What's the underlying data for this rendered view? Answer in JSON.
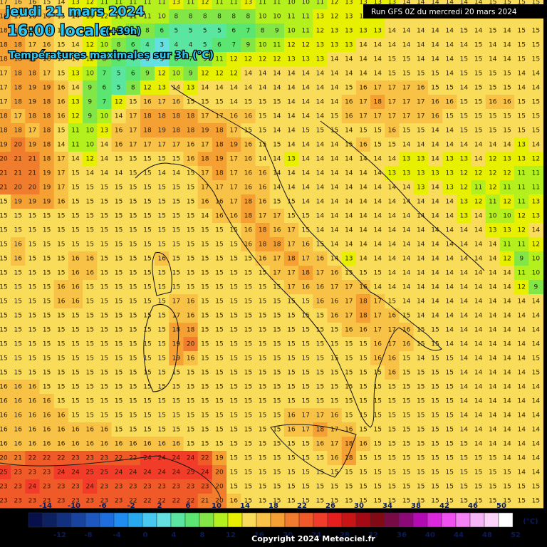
{
  "header": {
    "title": "jeudi 21 mars 2024",
    "time": "16:00 locale",
    "lead": "(+39h)",
    "subtitle": "Températures maximales sur 3h (°C)",
    "run": "Run GFS 0Z du mercredi 20 mars 2024"
  },
  "grid": {
    "rows": [
      [
        17,
        16,
        16,
        15,
        14,
        13,
        12,
        11,
        11,
        11,
        11,
        11,
        13,
        11,
        12,
        11,
        11,
        13,
        11,
        11,
        10,
        10,
        11,
        12,
        13,
        13,
        13,
        13,
        14,
        14,
        14,
        14,
        14,
        14,
        15,
        15,
        15,
        15
      ],
      [
        18,
        17,
        16,
        16,
        15,
        14,
        13,
        12,
        11,
        11,
        11,
        10,
        8,
        8,
        8,
        8,
        8,
        8,
        10,
        10,
        11,
        11,
        13,
        12,
        13,
        13,
        13,
        14,
        14,
        14,
        14,
        14,
        14,
        15,
        14,
        14,
        15,
        15
      ],
      [
        18,
        18,
        16,
        16,
        15,
        14,
        13,
        12,
        10,
        9,
        8,
        6,
        5,
        5,
        5,
        5,
        6,
        7,
        8,
        9,
        10,
        11,
        12,
        13,
        13,
        13,
        13,
        14,
        14,
        14,
        14,
        14,
        15,
        14,
        15,
        14,
        15,
        15
      ],
      [
        18,
        18,
        17,
        16,
        15,
        14,
        12,
        10,
        8,
        6,
        4,
        3,
        4,
        4,
        5,
        6,
        7,
        9,
        10,
        11,
        12,
        12,
        13,
        13,
        13,
        14,
        14,
        14,
        14,
        14,
        14,
        14,
        14,
        15,
        14,
        14,
        15,
        15
      ],
      [
        18,
        18,
        18,
        16,
        15,
        14,
        12,
        8,
        6,
        4,
        3,
        3,
        6,
        7,
        9,
        11,
        12,
        12,
        12,
        12,
        13,
        13,
        13,
        14,
        14,
        14,
        14,
        15,
        15,
        14,
        14,
        14,
        15,
        15,
        14,
        14,
        15,
        15
      ],
      [
        17,
        18,
        18,
        17,
        15,
        13,
        10,
        7,
        5,
        6,
        9,
        12,
        10,
        9,
        12,
        12,
        12,
        14,
        14,
        14,
        14,
        14,
        14,
        14,
        14,
        14,
        14,
        15,
        15,
        15,
        15,
        14,
        15,
        15,
        15,
        15,
        14,
        14
      ],
      [
        17,
        18,
        19,
        19,
        16,
        14,
        9,
        6,
        5,
        8,
        12,
        13,
        14,
        13,
        14,
        14,
        14,
        14,
        14,
        14,
        14,
        14,
        14,
        14,
        15,
        16,
        17,
        17,
        17,
        16,
        15,
        15,
        14,
        15,
        15,
        15,
        14,
        14
      ],
      [
        17,
        18,
        19,
        18,
        16,
        13,
        9,
        7,
        12,
        15,
        16,
        17,
        16,
        15,
        15,
        15,
        14,
        15,
        15,
        15,
        14,
        14,
        14,
        14,
        16,
        17,
        18,
        17,
        17,
        17,
        16,
        16,
        15,
        15,
        16,
        16,
        15,
        15
      ],
      [
        18,
        17,
        18,
        18,
        16,
        12,
        9,
        10,
        14,
        17,
        18,
        18,
        18,
        18,
        17,
        17,
        16,
        16,
        15,
        14,
        14,
        14,
        14,
        15,
        16,
        17,
        17,
        17,
        17,
        17,
        16,
        15,
        15,
        15,
        15,
        15,
        15,
        15
      ],
      [
        18,
        18,
        17,
        18,
        15,
        11,
        10,
        13,
        16,
        17,
        18,
        19,
        18,
        18,
        19,
        18,
        17,
        15,
        15,
        14,
        14,
        15,
        15,
        15,
        14,
        15,
        15,
        16,
        15,
        15,
        14,
        14,
        15,
        15,
        15,
        15,
        15,
        15
      ],
      [
        19,
        20,
        19,
        18,
        14,
        11,
        10,
        14,
        16,
        17,
        17,
        17,
        17,
        16,
        17,
        18,
        19,
        16,
        15,
        15,
        14,
        14,
        14,
        14,
        15,
        16,
        15,
        15,
        14,
        14,
        14,
        14,
        14,
        14,
        14,
        14,
        13,
        14
      ],
      [
        20,
        21,
        21,
        18,
        17,
        14,
        12,
        14,
        15,
        15,
        15,
        15,
        15,
        16,
        18,
        19,
        17,
        16,
        14,
        14,
        13,
        14,
        14,
        14,
        14,
        14,
        14,
        14,
        13,
        13,
        14,
        13,
        13,
        14,
        12,
        13,
        13,
        12
      ],
      [
        21,
        21,
        21,
        19,
        17,
        15,
        14,
        14,
        14,
        15,
        15,
        14,
        14,
        15,
        17,
        18,
        17,
        16,
        16,
        14,
        14,
        14,
        14,
        14,
        14,
        14,
        14,
        13,
        13,
        13,
        13,
        13,
        12,
        12,
        12,
        12,
        11,
        11
      ],
      [
        21,
        20,
        20,
        19,
        17,
        15,
        15,
        15,
        15,
        15,
        15,
        15,
        15,
        15,
        17,
        17,
        17,
        16,
        16,
        14,
        14,
        14,
        14,
        14,
        14,
        14,
        14,
        14,
        14,
        13,
        14,
        13,
        12,
        11,
        12,
        11,
        11,
        11
      ],
      [
        15,
        19,
        19,
        19,
        16,
        15,
        15,
        15,
        15,
        15,
        15,
        15,
        15,
        15,
        16,
        16,
        17,
        18,
        16,
        15,
        15,
        14,
        14,
        14,
        14,
        14,
        14,
        14,
        14,
        14,
        14,
        14,
        13,
        12,
        11,
        12,
        11,
        13
      ],
      [
        15,
        15,
        15,
        15,
        15,
        15,
        15,
        15,
        15,
        15,
        15,
        15,
        15,
        15,
        14,
        16,
        16,
        18,
        17,
        17,
        15,
        15,
        14,
        14,
        14,
        14,
        14,
        14,
        14,
        14,
        14,
        14,
        13,
        14,
        10,
        10,
        12,
        13
      ],
      [
        15,
        15,
        15,
        15,
        15,
        15,
        15,
        15,
        15,
        15,
        15,
        15,
        15,
        15,
        15,
        15,
        15,
        16,
        18,
        16,
        17,
        15,
        14,
        14,
        14,
        14,
        14,
        14,
        14,
        14,
        14,
        14,
        14,
        14,
        13,
        13,
        12,
        14
      ],
      [
        15,
        16,
        15,
        15,
        15,
        15,
        15,
        15,
        15,
        15,
        15,
        15,
        15,
        15,
        15,
        15,
        15,
        16,
        18,
        18,
        17,
        16,
        15,
        14,
        14,
        14,
        14,
        14,
        14,
        14,
        14,
        14,
        14,
        14,
        14,
        11,
        11,
        12
      ],
      [
        15,
        16,
        15,
        15,
        15,
        16,
        16,
        15,
        15,
        15,
        15,
        16,
        15,
        15,
        15,
        15,
        15,
        15,
        16,
        17,
        18,
        17,
        16,
        14,
        13,
        14,
        14,
        14,
        14,
        14,
        14,
        14,
        14,
        14,
        14,
        12,
        9,
        10
      ],
      [
        15,
        15,
        15,
        15,
        15,
        16,
        16,
        15,
        15,
        15,
        15,
        15,
        15,
        15,
        15,
        15,
        15,
        15,
        15,
        17,
        17,
        18,
        17,
        16,
        15,
        15,
        15,
        14,
        14,
        14,
        14,
        14,
        14,
        14,
        14,
        14,
        11,
        10
      ],
      [
        15,
        15,
        15,
        15,
        16,
        16,
        15,
        15,
        15,
        15,
        15,
        15,
        15,
        15,
        15,
        15,
        15,
        15,
        15,
        15,
        17,
        16,
        16,
        17,
        17,
        16,
        14,
        14,
        14,
        14,
        14,
        14,
        14,
        14,
        14,
        14,
        12,
        9
      ],
      [
        15,
        15,
        15,
        15,
        16,
        16,
        15,
        15,
        15,
        15,
        15,
        15,
        17,
        16,
        15,
        15,
        15,
        15,
        15,
        15,
        15,
        15,
        16,
        16,
        17,
        18,
        17,
        15,
        14,
        14,
        14,
        14,
        14,
        14,
        14,
        14,
        14,
        14
      ],
      [
        15,
        15,
        15,
        15,
        15,
        15,
        15,
        15,
        15,
        15,
        15,
        15,
        17,
        16,
        15,
        15,
        15,
        15,
        15,
        15,
        15,
        15,
        15,
        16,
        17,
        18,
        17,
        16,
        15,
        14,
        14,
        14,
        14,
        14,
        14,
        14,
        14,
        14
      ],
      [
        15,
        15,
        15,
        15,
        15,
        15,
        15,
        15,
        15,
        15,
        15,
        15,
        18,
        18,
        15,
        15,
        15,
        15,
        15,
        15,
        15,
        15,
        15,
        15,
        16,
        16,
        17,
        17,
        16,
        15,
        15,
        14,
        14,
        14,
        14,
        14,
        14,
        14
      ],
      [
        15,
        15,
        15,
        15,
        15,
        15,
        15,
        15,
        15,
        15,
        15,
        15,
        19,
        20,
        15,
        15,
        15,
        15,
        15,
        15,
        15,
        15,
        15,
        15,
        15,
        15,
        16,
        17,
        16,
        15,
        15,
        14,
        14,
        14,
        14,
        14,
        14,
        14
      ],
      [
        15,
        15,
        15,
        15,
        15,
        15,
        15,
        15,
        15,
        15,
        15,
        15,
        19,
        16,
        15,
        15,
        15,
        15,
        15,
        15,
        15,
        15,
        15,
        15,
        15,
        15,
        16,
        16,
        15,
        14,
        15,
        15,
        14,
        14,
        14,
        14,
        14,
        15
      ],
      [
        15,
        15,
        15,
        15,
        15,
        15,
        15,
        15,
        15,
        15,
        15,
        15,
        15,
        15,
        15,
        15,
        15,
        15,
        15,
        15,
        15,
        15,
        15,
        15,
        15,
        15,
        15,
        16,
        15,
        15,
        15,
        15,
        14,
        14,
        14,
        14,
        14,
        15
      ],
      [
        16,
        16,
        16,
        15,
        15,
        15,
        15,
        15,
        15,
        15,
        15,
        15,
        15,
        15,
        15,
        15,
        15,
        15,
        15,
        15,
        15,
        15,
        15,
        15,
        15,
        15,
        15,
        15,
        15,
        15,
        15,
        15,
        14,
        14,
        14,
        14,
        14,
        14
      ],
      [
        16,
        16,
        16,
        16,
        15,
        15,
        15,
        15,
        15,
        15,
        15,
        15,
        15,
        15,
        15,
        15,
        15,
        15,
        15,
        15,
        15,
        15,
        15,
        15,
        15,
        15,
        15,
        15,
        15,
        15,
        15,
        15,
        14,
        14,
        14,
        14,
        14,
        14
      ],
      [
        16,
        16,
        16,
        16,
        16,
        15,
        15,
        15,
        15,
        15,
        15,
        15,
        15,
        15,
        15,
        15,
        15,
        15,
        15,
        15,
        16,
        17,
        17,
        16,
        15,
        15,
        15,
        15,
        15,
        15,
        15,
        15,
        14,
        14,
        14,
        14,
        14,
        14
      ],
      [
        16,
        16,
        16,
        16,
        16,
        16,
        16,
        16,
        15,
        15,
        15,
        15,
        15,
        15,
        15,
        15,
        15,
        15,
        15,
        15,
        16,
        17,
        18,
        17,
        16,
        15,
        15,
        15,
        15,
        15,
        15,
        15,
        14,
        14,
        14,
        14,
        14,
        14
      ],
      [
        16,
        16,
        16,
        16,
        16,
        16,
        16,
        16,
        16,
        16,
        16,
        16,
        16,
        15,
        15,
        15,
        15,
        15,
        15,
        15,
        15,
        15,
        16,
        17,
        18,
        16,
        15,
        15,
        15,
        15,
        15,
        15,
        15,
        14,
        14,
        14,
        14,
        14
      ],
      [
        20,
        21,
        22,
        22,
        22,
        23,
        23,
        23,
        22,
        22,
        24,
        24,
        24,
        24,
        22,
        19,
        15,
        15,
        15,
        15,
        15,
        15,
        15,
        16,
        18,
        15,
        15,
        15,
        15,
        15,
        15,
        15,
        15,
        15,
        15,
        14,
        14,
        14
      ],
      [
        25,
        23,
        23,
        23,
        24,
        24,
        25,
        25,
        24,
        24,
        24,
        24,
        24,
        25,
        24,
        20,
        15,
        15,
        15,
        15,
        15,
        15,
        15,
        15,
        15,
        15,
        15,
        15,
        15,
        15,
        15,
        15,
        15,
        15,
        15,
        15,
        14,
        14
      ],
      [
        23,
        23,
        24,
        23,
        23,
        23,
        24,
        23,
        23,
        23,
        23,
        23,
        23,
        23,
        23,
        20,
        15,
        15,
        15,
        15,
        15,
        15,
        15,
        15,
        15,
        15,
        15,
        15,
        15,
        15,
        15,
        15,
        15,
        15,
        15,
        15,
        15,
        15
      ],
      [
        23,
        23,
        23,
        23,
        23,
        23,
        23,
        23,
        23,
        22,
        22,
        22,
        22,
        22,
        21,
        20,
        16,
        15,
        15,
        15,
        15,
        15,
        15,
        15,
        15,
        15,
        15,
        15,
        15,
        15,
        15,
        15,
        15,
        15,
        15,
        15,
        15,
        15
      ]
    ]
  },
  "colorbar": {
    "unit": "(°C)",
    "lim": [
      -16,
      52
    ],
    "colors": [
      "#07104a",
      "#0d2060",
      "#123080",
      "#1844a0",
      "#1c58c0",
      "#1e6ee0",
      "#1e8cf0",
      "#28aaf0",
      "#46c8f0",
      "#64e0e0",
      "#5ae6a0",
      "#5ae670",
      "#82e646",
      "#b4f01e",
      "#e6f000",
      "#f8dc5a",
      "#f8c246",
      "#f5a032",
      "#f07d2d",
      "#f05a28",
      "#f03c28",
      "#e61e1e",
      "#c81414",
      "#a50a14",
      "#820a14",
      "#780a46",
      "#8c0a78",
      "#b40ab4",
      "#dc28dc",
      "#f050f0",
      "#f582f5",
      "#f5b4f5",
      "#fad2fa",
      "#ffffff"
    ],
    "labels_top": [
      -14,
      -10,
      -6,
      -2,
      2,
      6,
      10,
      14,
      18,
      22,
      26,
      30,
      34,
      38,
      42,
      46,
      50
    ],
    "labels_bottom": [
      -12,
      -8,
      -4,
      0,
      4,
      8,
      12,
      16,
      20,
      24,
      28,
      32,
      36,
      40,
      44,
      48,
      52
    ]
  },
  "footer": {
    "copyright": "Copyright 2024 Meteociel.fr"
  }
}
